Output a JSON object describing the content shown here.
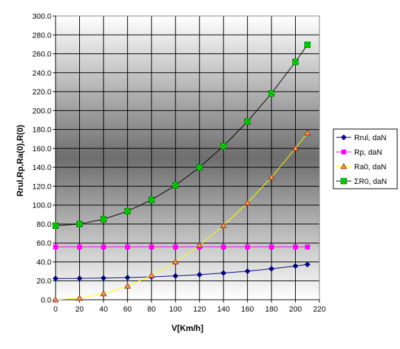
{
  "chart_data": {
    "type": "line",
    "title": "",
    "xlabel": "V[Km/h]",
    "ylabel": "Rrul,Rp,Ra(0),R(0)",
    "xlim": [
      0,
      220
    ],
    "ylim": [
      0,
      300
    ],
    "x_ticks": [
      "0",
      "20",
      "40",
      "60",
      "80",
      "100",
      "120",
      "140",
      "160",
      "180",
      "200",
      "220"
    ],
    "y_ticks": [
      "0.0",
      "20.0",
      "40.0",
      "60.0",
      "80.0",
      "100.0",
      "120.0",
      "140.0",
      "160.0",
      "180.0",
      "200.0",
      "220.0",
      "240.0",
      "260.0",
      "280.0",
      "300.0"
    ],
    "grid": true,
    "legend_position": "right",
    "x": [
      0,
      20,
      40,
      60,
      80,
      100,
      120,
      140,
      160,
      180,
      200,
      210
    ],
    "series": [
      {
        "name": "Rrul, daN",
        "color": "#000080",
        "marker": "diamond",
        "values": [
          22.5,
          22.6,
          22.9,
          23.4,
          24.2,
          25.2,
          26.5,
          28.2,
          30.2,
          32.7,
          35.7,
          37.3
        ]
      },
      {
        "name": "Rp, daN",
        "color": "#ff00ff",
        "marker": "square",
        "values": [
          55.8,
          55.8,
          55.8,
          55.8,
          55.8,
          55.8,
          55.8,
          55.8,
          55.8,
          55.8,
          55.8,
          55.8
        ]
      },
      {
        "name": "Ra0, daN",
        "color": "#ffff00",
        "marker": "triangle",
        "values": [
          0,
          1.6,
          6.4,
          14.4,
          25.6,
          40.0,
          57.6,
          78.4,
          102.4,
          129.6,
          160.0,
          176.4
        ]
      },
      {
        "name": "ΣR0, daN",
        "color": "#00ff00",
        "marker": "x-square",
        "values": [
          78.3,
          80.0,
          85.1,
          93.6,
          105.6,
          121.0,
          139.9,
          162.4,
          188.4,
          218.1,
          251.5,
          269.5
        ]
      }
    ]
  }
}
